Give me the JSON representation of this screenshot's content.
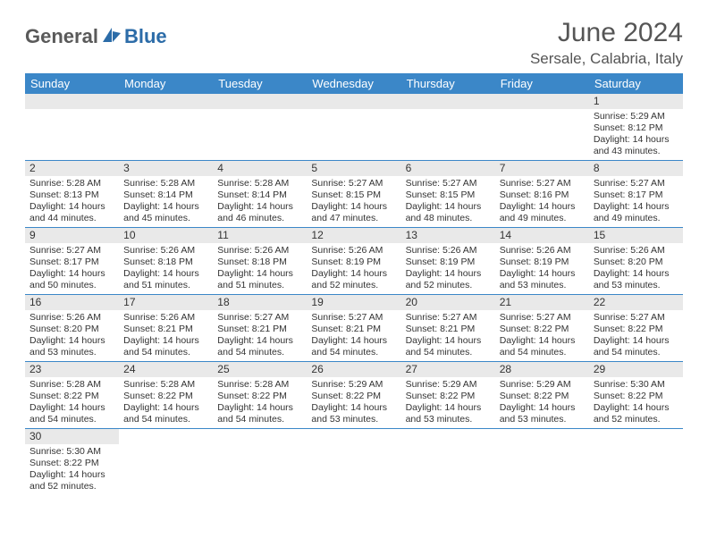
{
  "brand": {
    "part1": "General",
    "part2": "Blue"
  },
  "title": "June 2024",
  "location": "Sersale, Calabria, Italy",
  "colors": {
    "header_bg": "#3b87c8",
    "header_fg": "#ffffff",
    "daynum_bg": "#e9e9e9",
    "row_border": "#3b87c8",
    "logo_gray": "#5a5a5a",
    "logo_blue": "#2c6ca8"
  },
  "weekdays": [
    "Sunday",
    "Monday",
    "Tuesday",
    "Wednesday",
    "Thursday",
    "Friday",
    "Saturday"
  ],
  "weeks": [
    [
      null,
      null,
      null,
      null,
      null,
      null,
      {
        "d": "1",
        "sr": "5:29 AM",
        "ss": "8:12 PM",
        "dh": "14",
        "dm": "43"
      }
    ],
    [
      {
        "d": "2",
        "sr": "5:28 AM",
        "ss": "8:13 PM",
        "dh": "14",
        "dm": "44"
      },
      {
        "d": "3",
        "sr": "5:28 AM",
        "ss": "8:14 PM",
        "dh": "14",
        "dm": "45"
      },
      {
        "d": "4",
        "sr": "5:28 AM",
        "ss": "8:14 PM",
        "dh": "14",
        "dm": "46"
      },
      {
        "d": "5",
        "sr": "5:27 AM",
        "ss": "8:15 PM",
        "dh": "14",
        "dm": "47"
      },
      {
        "d": "6",
        "sr": "5:27 AM",
        "ss": "8:15 PM",
        "dh": "14",
        "dm": "48"
      },
      {
        "d": "7",
        "sr": "5:27 AM",
        "ss": "8:16 PM",
        "dh": "14",
        "dm": "49"
      },
      {
        "d": "8",
        "sr": "5:27 AM",
        "ss": "8:17 PM",
        "dh": "14",
        "dm": "49"
      }
    ],
    [
      {
        "d": "9",
        "sr": "5:27 AM",
        "ss": "8:17 PM",
        "dh": "14",
        "dm": "50"
      },
      {
        "d": "10",
        "sr": "5:26 AM",
        "ss": "8:18 PM",
        "dh": "14",
        "dm": "51"
      },
      {
        "d": "11",
        "sr": "5:26 AM",
        "ss": "8:18 PM",
        "dh": "14",
        "dm": "51"
      },
      {
        "d": "12",
        "sr": "5:26 AM",
        "ss": "8:19 PM",
        "dh": "14",
        "dm": "52"
      },
      {
        "d": "13",
        "sr": "5:26 AM",
        "ss": "8:19 PM",
        "dh": "14",
        "dm": "52"
      },
      {
        "d": "14",
        "sr": "5:26 AM",
        "ss": "8:19 PM",
        "dh": "14",
        "dm": "53"
      },
      {
        "d": "15",
        "sr": "5:26 AM",
        "ss": "8:20 PM",
        "dh": "14",
        "dm": "53"
      }
    ],
    [
      {
        "d": "16",
        "sr": "5:26 AM",
        "ss": "8:20 PM",
        "dh": "14",
        "dm": "53"
      },
      {
        "d": "17",
        "sr": "5:26 AM",
        "ss": "8:21 PM",
        "dh": "14",
        "dm": "54"
      },
      {
        "d": "18",
        "sr": "5:27 AM",
        "ss": "8:21 PM",
        "dh": "14",
        "dm": "54"
      },
      {
        "d": "19",
        "sr": "5:27 AM",
        "ss": "8:21 PM",
        "dh": "14",
        "dm": "54"
      },
      {
        "d": "20",
        "sr": "5:27 AM",
        "ss": "8:21 PM",
        "dh": "14",
        "dm": "54"
      },
      {
        "d": "21",
        "sr": "5:27 AM",
        "ss": "8:22 PM",
        "dh": "14",
        "dm": "54"
      },
      {
        "d": "22",
        "sr": "5:27 AM",
        "ss": "8:22 PM",
        "dh": "14",
        "dm": "54"
      }
    ],
    [
      {
        "d": "23",
        "sr": "5:28 AM",
        "ss": "8:22 PM",
        "dh": "14",
        "dm": "54"
      },
      {
        "d": "24",
        "sr": "5:28 AM",
        "ss": "8:22 PM",
        "dh": "14",
        "dm": "54"
      },
      {
        "d": "25",
        "sr": "5:28 AM",
        "ss": "8:22 PM",
        "dh": "14",
        "dm": "54"
      },
      {
        "d": "26",
        "sr": "5:29 AM",
        "ss": "8:22 PM",
        "dh": "14",
        "dm": "53"
      },
      {
        "d": "27",
        "sr": "5:29 AM",
        "ss": "8:22 PM",
        "dh": "14",
        "dm": "53"
      },
      {
        "d": "28",
        "sr": "5:29 AM",
        "ss": "8:22 PM",
        "dh": "14",
        "dm": "53"
      },
      {
        "d": "29",
        "sr": "5:30 AM",
        "ss": "8:22 PM",
        "dh": "14",
        "dm": "52"
      }
    ],
    [
      {
        "d": "30",
        "sr": "5:30 AM",
        "ss": "8:22 PM",
        "dh": "14",
        "dm": "52"
      },
      null,
      null,
      null,
      null,
      null,
      null
    ]
  ],
  "labels": {
    "sunrise": "Sunrise:",
    "sunset": "Sunset:",
    "daylight_prefix": "Daylight:",
    "hours_word": "hours",
    "and_word": "and",
    "minutes_word": "minutes."
  }
}
